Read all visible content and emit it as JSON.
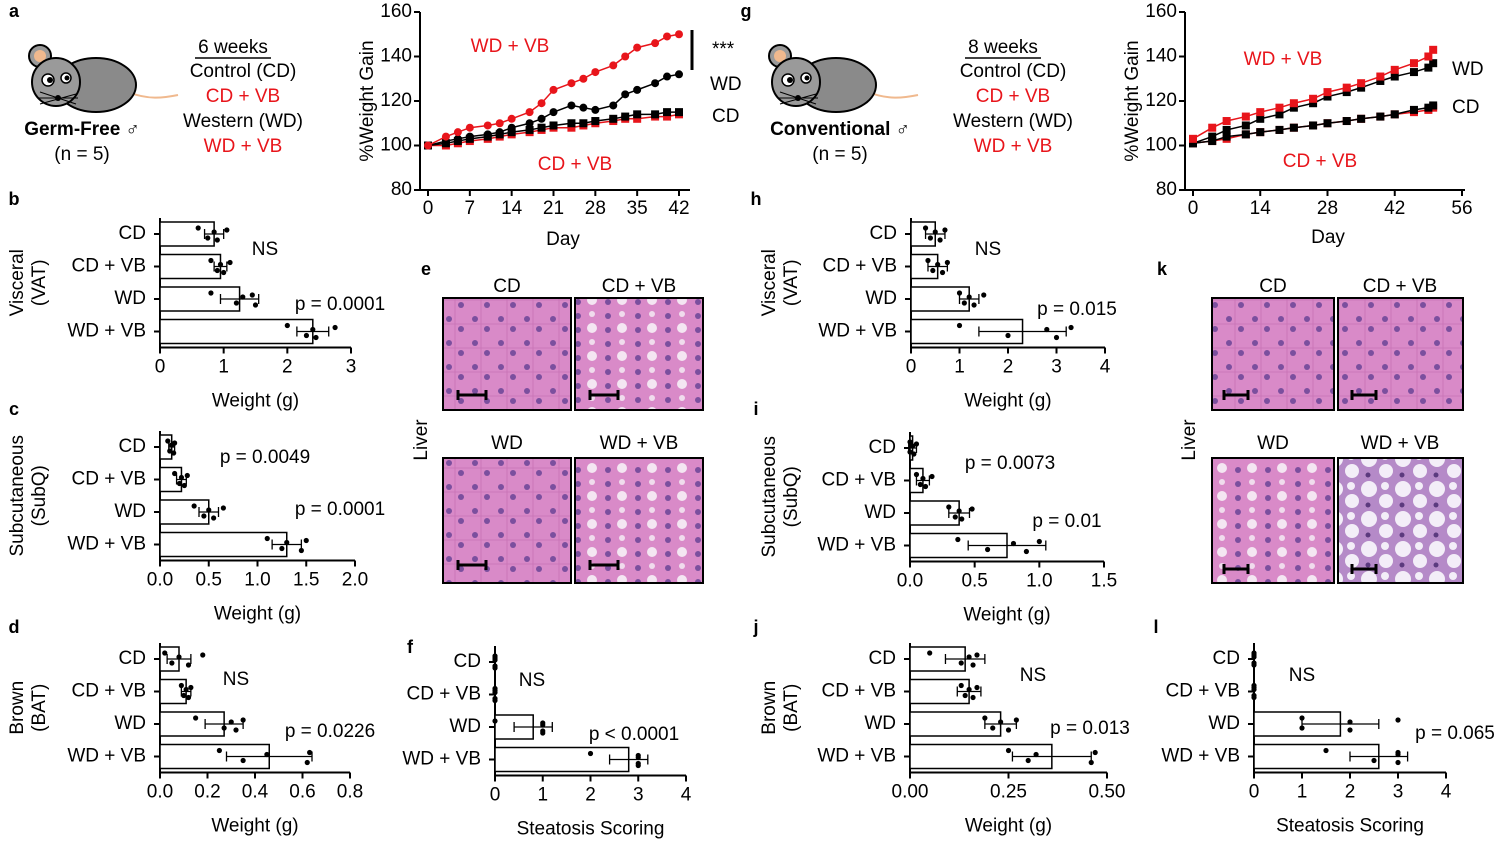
{
  "panel_labels": [
    "a",
    "b",
    "c",
    "d",
    "e",
    "f",
    "g",
    "h",
    "i",
    "j",
    "k",
    "l"
  ],
  "cohorts": [
    {
      "duration": "6 weeks",
      "groups": [
        "Control (CD)",
        "CD + VB",
        "Western (WD)",
        "WD + VB"
      ],
      "name": "Germ-Free ♂",
      "n": "(n = 5)"
    },
    {
      "duration": "8 weeks",
      "groups": [
        "Control (CD)",
        "CD + VB",
        "Western (WD)",
        "WD + VB"
      ],
      "name": "Conventional ♂",
      "n": "(n = 5)"
    }
  ],
  "histology": [
    {
      "organ": "Liver",
      "labels": [
        "CD",
        "CD + VB",
        "WD",
        "WD + VB"
      ]
    },
    {
      "organ": "Liver",
      "labels": [
        "CD",
        "CD + VB",
        "WD",
        "WD + VB"
      ]
    }
  ],
  "chart_data": [
    {
      "type": "line",
      "xlabel": "Day",
      "ylabel": "%Weight Gain",
      "x": [
        0,
        3,
        5,
        7,
        10,
        12,
        14,
        17,
        19,
        21,
        24,
        26,
        28,
        31,
        33,
        35,
        38,
        40,
        42
      ],
      "xlim": [
        0,
        42
      ],
      "xticks": [
        0,
        7,
        14,
        21,
        28,
        35,
        42
      ],
      "ylim": [
        80,
        160
      ],
      "yticks": [
        80,
        100,
        120,
        140,
        160
      ],
      "series": [
        {
          "name": "WD + VB",
          "color": "#e8151b",
          "marker": "circle",
          "values": [
            100,
            104,
            106,
            108,
            109,
            110,
            112,
            115,
            119,
            125,
            128,
            130,
            133,
            136,
            140,
            144,
            146,
            149,
            150
          ]
        },
        {
          "name": "WD",
          "color": "#000000",
          "marker": "circle",
          "values": [
            100,
            102,
            103,
            104,
            105,
            106,
            108,
            110,
            112,
            115,
            118,
            117,
            116,
            118,
            123,
            125,
            128,
            131,
            132
          ]
        },
        {
          "name": "CD",
          "color": "#000000",
          "marker": "square",
          "values": [
            100,
            101,
            102,
            103,
            104,
            105,
            106,
            107,
            108,
            109,
            110,
            110,
            111,
            112,
            113,
            114,
            114,
            115,
            115
          ]
        },
        {
          "name": "CD + VB",
          "color": "#e8151b",
          "marker": "square",
          "values": [
            100,
            100,
            101,
            102,
            103,
            104,
            105,
            106,
            107,
            108,
            108,
            109,
            110,
            111,
            112,
            112,
            113,
            113,
            114
          ]
        }
      ],
      "annotations": [
        {
          "text": "WD + VB",
          "color": "#e8151b"
        },
        {
          "text": "***",
          "color": "#000000"
        },
        {
          "text": "WD",
          "color": "#000000"
        },
        {
          "text": "CD",
          "color": "#000000"
        },
        {
          "text": "CD + VB",
          "color": "#e8151b"
        }
      ]
    },
    {
      "type": "line",
      "xlabel": "Day",
      "ylabel": "%Weight Gain",
      "x": [
        0,
        4,
        7,
        11,
        14,
        18,
        21,
        25,
        28,
        32,
        35,
        39,
        42,
        46,
        49,
        50
      ],
      "xlim": [
        0,
        56
      ],
      "xticks": [
        0,
        14,
        28,
        42,
        56
      ],
      "ylim": [
        80,
        160
      ],
      "yticks": [
        80,
        100,
        120,
        140,
        160
      ],
      "series": [
        {
          "name": "WD + VB",
          "color": "#e8151b",
          "marker": "square",
          "values": [
            103,
            108,
            111,
            113,
            115,
            117,
            119,
            121,
            124,
            126,
            128,
            131,
            134,
            137,
            140,
            143
          ]
        },
        {
          "name": "WD",
          "color": "#000000",
          "marker": "square",
          "values": [
            101,
            104,
            107,
            109,
            112,
            114,
            117,
            119,
            122,
            124,
            126,
            129,
            131,
            133,
            135,
            137
          ]
        },
        {
          "name": "CD",
          "color": "#000000",
          "marker": "square",
          "values": [
            101,
            102,
            104,
            105,
            106,
            107,
            108,
            109,
            110,
            111,
            112,
            113,
            114,
            116,
            117,
            118
          ]
        },
        {
          "name": "CD + VB",
          "color": "#e8151b",
          "marker": "square",
          "values": [
            101,
            102,
            103,
            105,
            106,
            107,
            108,
            109,
            110,
            111,
            112,
            113,
            114,
            115,
            116,
            117
          ]
        }
      ],
      "annotations": [
        {
          "text": "WD + VB",
          "color": "#e8151b"
        },
        {
          "text": "WD",
          "color": "#000000"
        },
        {
          "text": "CD",
          "color": "#000000"
        },
        {
          "text": "CD + VB",
          "color": "#e8151b"
        }
      ]
    },
    {
      "type": "hbar",
      "ylabel": [
        "Visceral",
        "(VAT)"
      ],
      "xlabel": "Weight (g)",
      "categories": [
        "CD",
        "CD + VB",
        "WD",
        "WD + VB"
      ],
      "values": [
        0.85,
        0.95,
        1.25,
        2.4
      ],
      "errors": [
        0.15,
        0.1,
        0.3,
        0.25
      ],
      "points": [
        [
          0.6,
          0.75,
          0.85,
          0.9,
          1.05
        ],
        [
          0.8,
          0.9,
          0.95,
          1.0,
          1.1
        ],
        [
          0.8,
          1.2,
          1.3,
          1.5,
          1.45
        ],
        [
          2.0,
          2.3,
          2.4,
          2.45,
          2.75
        ]
      ],
      "xlim": [
        0,
        3
      ],
      "xticks": [
        0,
        1,
        2,
        3
      ],
      "annotations": [
        "NS",
        "p = 0.0001"
      ]
    },
    {
      "type": "hbar",
      "ylabel": [
        "Subcutaneous",
        "(SubQ)"
      ],
      "xlabel": "Weight (g)",
      "categories": [
        "CD",
        "CD + VB",
        "WD",
        "WD + VB"
      ],
      "values": [
        0.12,
        0.22,
        0.5,
        1.3
      ],
      "errors": [
        0.03,
        0.05,
        0.1,
        0.15
      ],
      "points": [
        [
          0.08,
          0.1,
          0.12,
          0.14,
          0.15
        ],
        [
          0.15,
          0.2,
          0.22,
          0.25,
          0.28
        ],
        [
          0.35,
          0.45,
          0.5,
          0.55,
          0.65
        ],
        [
          1.1,
          1.25,
          1.3,
          1.45,
          1.5
        ]
      ],
      "xlim": [
        0,
        2
      ],
      "xticks": [
        {
          "value": 0,
          "label": "0.0"
        },
        0.5,
        {
          "value": 1,
          "label": "1.0"
        },
        1.5,
        {
          "value": 2,
          "label": "2.0"
        }
      ],
      "annotations": [
        "p = 0.0049",
        "p = 0.0001"
      ]
    },
    {
      "type": "hbar",
      "ylabel": [
        "Brown",
        "(BAT)"
      ],
      "xlabel": "Weight (g)",
      "categories": [
        "CD",
        "CD + VB",
        "WD",
        "WD + VB"
      ],
      "values": [
        0.08,
        0.11,
        0.27,
        0.46
      ],
      "errors": [
        0.05,
        0.02,
        0.08,
        0.18
      ],
      "points": [
        [
          0.02,
          0.05,
          0.08,
          0.12,
          0.18
        ],
        [
          0.09,
          0.1,
          0.11,
          0.12,
          0.13
        ],
        [
          0.15,
          0.27,
          0.3,
          0.32,
          0.35
        ],
        [
          0.25,
          0.35,
          0.45,
          0.62,
          0.63
        ]
      ],
      "xlim": [
        0,
        0.8
      ],
      "xticks": [
        {
          "value": 0,
          "label": "0.0"
        },
        0.2,
        0.4,
        0.6,
        0.8
      ],
      "annotations": [
        "NS",
        "p = 0.0226"
      ]
    },
    {
      "type": "hbar",
      "xlabel": "Steatosis Scoring",
      "categories": [
        "CD",
        "CD + VB",
        "WD",
        "WD + VB"
      ],
      "values": [
        0,
        0,
        0.8,
        2.8
      ],
      "errors": [
        0,
        0,
        0.4,
        0.4
      ],
      "points": [
        [
          0,
          0,
          0,
          0,
          0
        ],
        [
          0,
          0,
          0,
          0,
          0
        ],
        [
          0,
          1,
          1,
          1,
          1
        ],
        [
          2,
          3,
          3,
          3,
          3
        ]
      ],
      "xlim": [
        0,
        4
      ],
      "xticks": [
        0,
        1,
        2,
        3,
        4
      ],
      "annotations": [
        "NS",
        "p < 0.0001"
      ]
    },
    {
      "type": "hbar",
      "ylabel": [
        "Visceral",
        "(VAT)"
      ],
      "xlabel": "Weight (g)",
      "categories": [
        "CD",
        "CD + VB",
        "WD",
        "WD + VB"
      ],
      "values": [
        0.5,
        0.55,
        1.2,
        2.3
      ],
      "errors": [
        0.2,
        0.2,
        0.2,
        0.9
      ],
      "points": [
        [
          0.3,
          0.4,
          0.5,
          0.6,
          0.7
        ],
        [
          0.35,
          0.45,
          0.55,
          0.65,
          0.75
        ],
        [
          1.0,
          1.1,
          1.2,
          1.3,
          1.5
        ],
        [
          1.0,
          2.0,
          2.8,
          3.0,
          3.3
        ]
      ],
      "xlim": [
        0,
        4
      ],
      "xticks": [
        0,
        1,
        2,
        3,
        4
      ],
      "annotations": [
        "NS",
        "p = 0.015"
      ]
    },
    {
      "type": "hbar",
      "ylabel": [
        "Subcutaneous",
        "(SubQ)"
      ],
      "xlabel": "Weight (g)",
      "categories": [
        "CD",
        "CD + VB",
        "WD",
        "WD + VB"
      ],
      "values": [
        0.02,
        0.1,
        0.38,
        0.75
      ],
      "errors": [
        0.03,
        0.05,
        0.08,
        0.3
      ],
      "points": [
        [
          0.0,
          0.0,
          0.02,
          0.03,
          0.05
        ],
        [
          0.05,
          0.08,
          0.1,
          0.12,
          0.17
        ],
        [
          0.3,
          0.35,
          0.38,
          0.4,
          0.48
        ],
        [
          0.37,
          0.6,
          0.8,
          0.9,
          1.0
        ]
      ],
      "xlim": [
        0,
        1.5
      ],
      "xticks": [
        {
          "value": 0,
          "label": "0.0"
        },
        0.5,
        {
          "value": 1,
          "label": "1.0"
        },
        1.5
      ],
      "annotations": [
        "p = 0.0073",
        "p = 0.01"
      ]
    },
    {
      "type": "hbar",
      "ylabel": [
        "Brown",
        "(BAT)"
      ],
      "xlabel": "Weight (g)",
      "categories": [
        "CD",
        "CD + VB",
        "WD",
        "WD + VB"
      ],
      "values": [
        0.14,
        0.15,
        0.23,
        0.36
      ],
      "errors": [
        0.05,
        0.03,
        0.04,
        0.1
      ],
      "points": [
        [
          0.05,
          0.13,
          0.15,
          0.16,
          0.17
        ],
        [
          0.13,
          0.14,
          0.15,
          0.16,
          0.17
        ],
        [
          0.19,
          0.21,
          0.23,
          0.25,
          0.27
        ],
        [
          0.25,
          0.3,
          0.32,
          0.46,
          0.47
        ]
      ],
      "xlim": [
        0,
        0.5
      ],
      "xticks": [
        {
          "value": 0,
          "label": "0.00"
        },
        0.25,
        {
          "value": 0.5,
          "label": "0.50"
        }
      ],
      "annotations": [
        "NS",
        "p = 0.013"
      ]
    },
    {
      "type": "hbar",
      "xlabel": "Steatosis Scoring",
      "categories": [
        "CD",
        "CD + VB",
        "WD",
        "WD + VB"
      ],
      "values": [
        0,
        0,
        1.8,
        2.6
      ],
      "errors": [
        0,
        0,
        0.8,
        0.6
      ],
      "points": [
        [
          0,
          0,
          0,
          0,
          0
        ],
        [
          0,
          0,
          0,
          0,
          0
        ],
        [
          1,
          1,
          2,
          2,
          3
        ],
        [
          1.5,
          2.5,
          3,
          3,
          3
        ]
      ],
      "xlim": [
        0,
        4
      ],
      "xticks": [
        0,
        1,
        2,
        3,
        4
      ],
      "annotations": [
        "NS",
        "p = 0.065"
      ]
    }
  ]
}
